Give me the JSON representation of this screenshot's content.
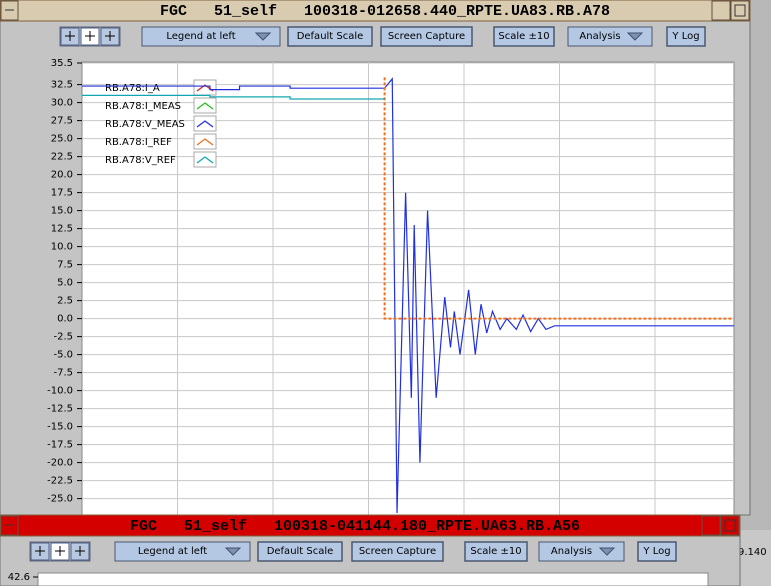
{
  "windows": [
    {
      "title": "FGC   51_self   100318-012658.440_RPTE.UA83.RB.A78",
      "toolbar": [
        {
          "label": "Legend at left",
          "kind": "menu"
        },
        {
          "label": "Default Scale",
          "kind": "button"
        },
        {
          "label": "Screen Capture",
          "kind": "button"
        },
        {
          "label": "Scale ±10",
          "kind": "button"
        },
        {
          "label": "Analysis",
          "kind": "menu"
        },
        {
          "label": "Y Log",
          "kind": "button"
        }
      ],
      "chart": {
        "type": "line",
        "xlim": [
          0,
          6.83
        ],
        "ylim": [
          -27,
          35.5
        ],
        "grid": true,
        "yticks": [
          35.5,
          32.5,
          {
            "value": 30,
            "label": "30.0"
          },
          27.5,
          {
            "value": 25,
            "label": "25.0"
          },
          22.5,
          {
            "value": 20,
            "label": "20.0"
          },
          17.5,
          {
            "value": 15,
            "label": "15.0"
          },
          12.5,
          {
            "value": 10,
            "label": "10.0"
          },
          7.5,
          {
            "value": 5,
            "label": "5.0"
          },
          2.5,
          {
            "value": 0,
            "label": "0.0"
          },
          -2.5,
          {
            "value": -5,
            "label": "-5.0"
          },
          -7.5,
          {
            "value": -10,
            "label": "-10.0"
          },
          -12.5,
          {
            "value": -15,
            "label": "-15.0"
          },
          -17.5,
          {
            "value": -20,
            "label": "-20.0"
          },
          -22.5,
          {
            "value": -25,
            "label": "-25.0"
          }
        ],
        "series": [
          {
            "name": "RB.A78:I_A",
            "color": "#e02020"
          },
          {
            "name": "RB.A78:I_MEAS",
            "color": "#20c020"
          },
          {
            "name": "RB.A78:V_MEAS",
            "color": "#2030e0",
            "x": [
              0,
              1.34,
              1.34,
              1.65,
              1.65,
              2.18,
              2.18,
              3.17,
              3.25,
              3.3,
              3.39,
              3.45,
              3.48,
              3.54,
              3.62,
              3.71,
              3.8,
              3.86,
              3.9,
              3.96,
              4.05,
              4.12,
              4.18,
              4.24,
              4.3,
              4.38,
              4.45,
              4.55,
              4.62,
              4.7,
              4.78,
              4.86,
              4.95,
              6.83
            ],
            "values": [
              32.3,
              32.3,
              31.8,
              31.8,
              32.3,
              32.3,
              32,
              32,
              33.3,
              -27,
              17.5,
              -11,
              13,
              -20,
              15,
              -11,
              3,
              -4,
              1,
              -5,
              4,
              -5,
              2,
              -2,
              1,
              -1.5,
              0,
              -1.5,
              0.5,
              -1.8,
              0,
              -1.5,
              -1,
              -1
            ]
          },
          {
            "name": "RB.A78:I_REF",
            "color": "#f07020",
            "x": [
              3.17,
              3.17,
              6.83
            ],
            "values": [
              33.5,
              0,
              0
            ]
          },
          {
            "name": "RB.A78:V_REF",
            "color": "#10a8b0",
            "x": [
              0,
              1.34,
              1.34,
              2.18,
              2.18,
              3.17
            ],
            "values": [
              31,
              31,
              30.8,
              30.8,
              30.5,
              30.5
            ]
          }
        ]
      }
    },
    {
      "title": "FGC   51_self   100318-041144.180_RPTE.UA63.RB.A56",
      "toolbar": [
        {
          "label": "Legend at left",
          "kind": "menu"
        },
        {
          "label": "Default Scale",
          "kind": "button"
        },
        {
          "label": "Screen Capture",
          "kind": "button"
        },
        {
          "label": "Scale ±10",
          "kind": "button"
        },
        {
          "label": "Analysis",
          "kind": "menu"
        },
        {
          "label": "Y Log",
          "kind": "button"
        }
      ],
      "chart": {
        "type": "line",
        "yticks": [
          42.6
        ]
      }
    }
  ],
  "background_text": "9.140"
}
